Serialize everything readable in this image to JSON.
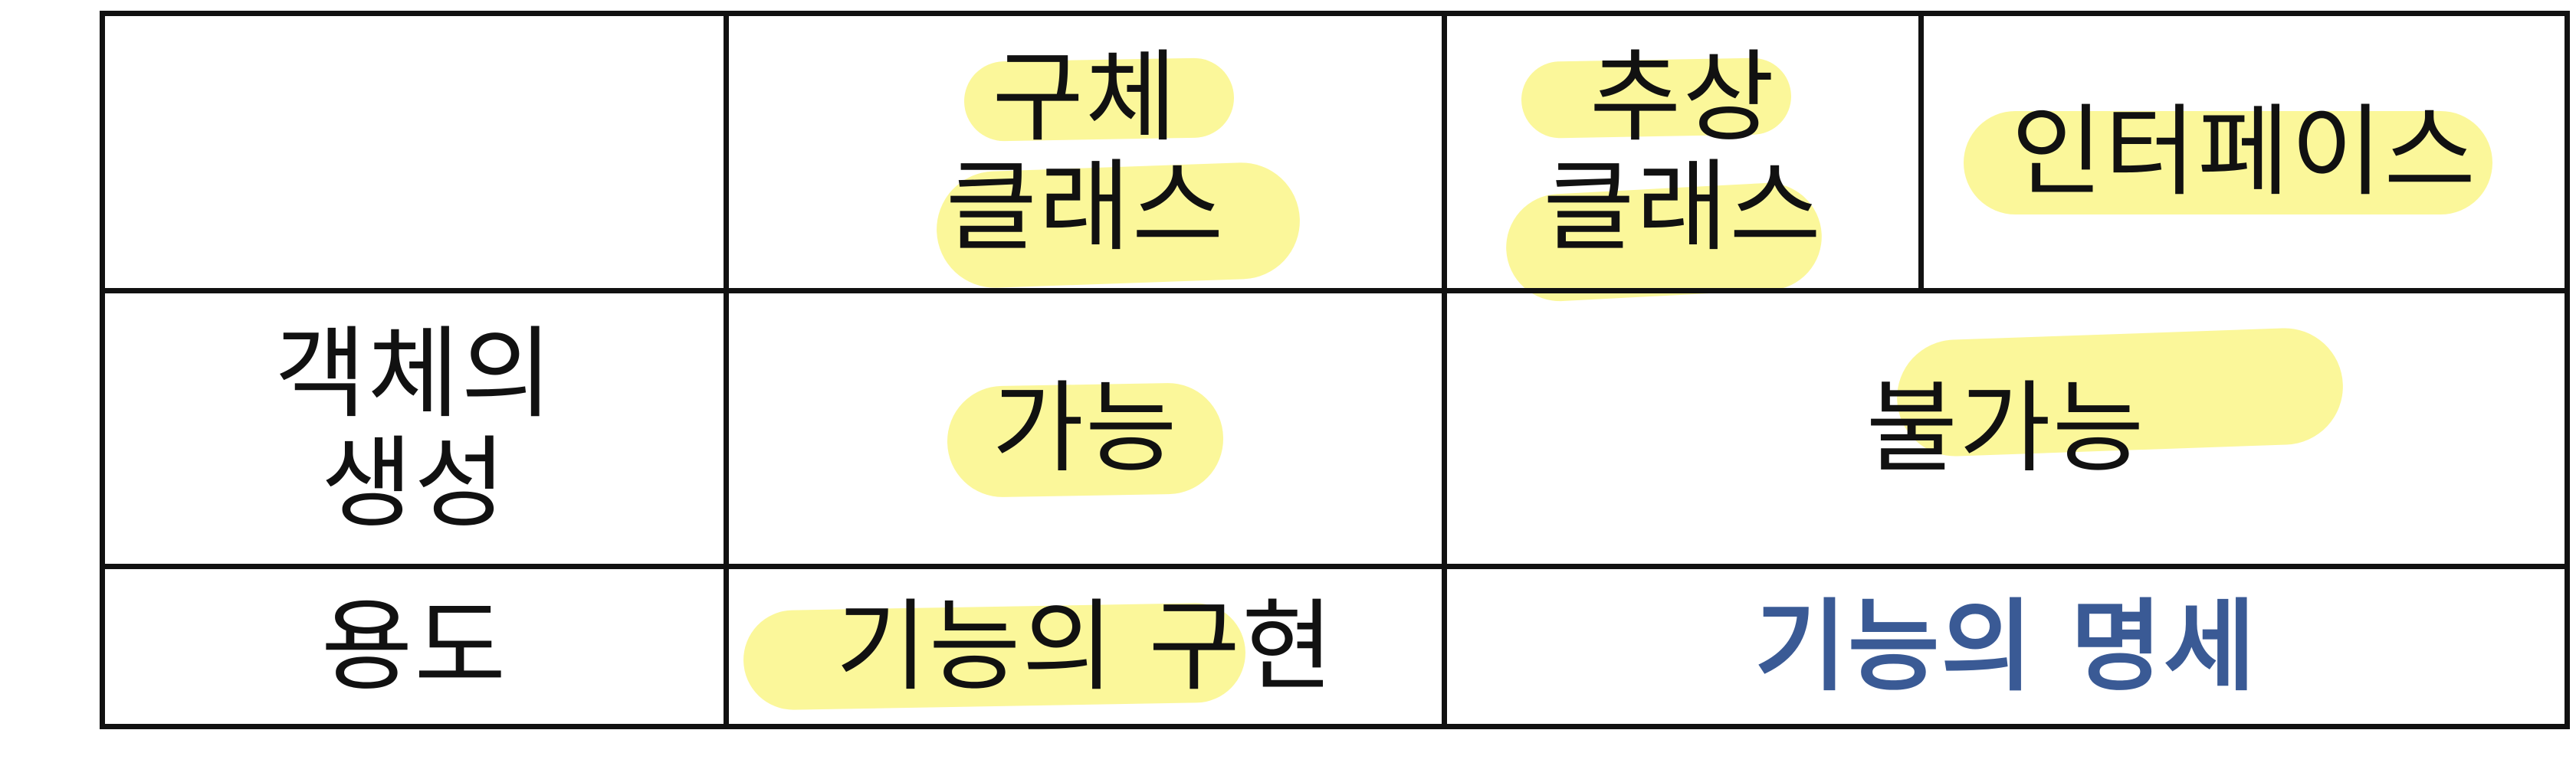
{
  "header": {
    "corner": "",
    "concrete_class": [
      "구체",
      "클래스"
    ],
    "abstract_class": [
      "추상",
      "클래스"
    ],
    "interface": "인터페이스"
  },
  "rows": [
    {
      "label": [
        "객체의",
        "생성"
      ],
      "concrete_value": "가능",
      "shared_value": "불가능"
    },
    {
      "label": [
        "용도"
      ],
      "concrete_value": "기능의 구현",
      "shared_value": "기능의 명세"
    }
  ],
  "colors": {
    "highlight": "#fbf79a",
    "border": "#111111",
    "text": "#111111",
    "spec_text": "#3a5a95"
  }
}
